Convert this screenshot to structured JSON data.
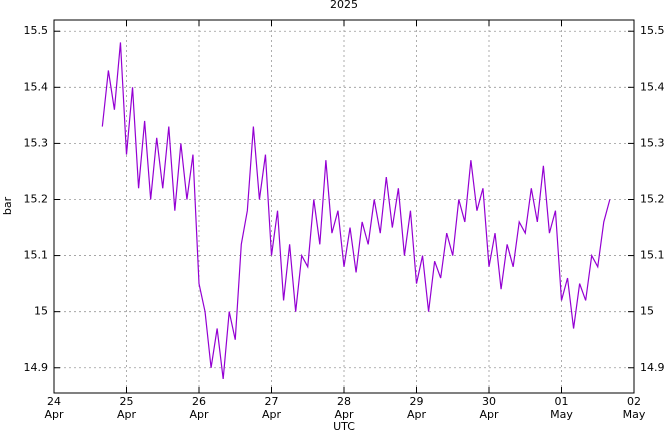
{
  "chart_data": {
    "type": "line",
    "title": "2025",
    "x_label": "UTC",
    "y_label": "bar",
    "color": "#9400d3",
    "grid": true,
    "x": [
      "2025-04-24T16:00",
      "2025-04-24T18:00",
      "2025-04-24T20:00",
      "2025-04-24T22:00",
      "2025-04-25T00:00",
      "2025-04-25T02:00",
      "2025-04-25T04:00",
      "2025-04-25T06:00",
      "2025-04-25T08:00",
      "2025-04-25T10:00",
      "2025-04-25T12:00",
      "2025-04-25T14:00",
      "2025-04-25T16:00",
      "2025-04-25T18:00",
      "2025-04-25T20:00",
      "2025-04-25T22:00",
      "2025-04-26T00:00",
      "2025-04-26T02:00",
      "2025-04-26T04:00",
      "2025-04-26T06:00",
      "2025-04-26T08:00",
      "2025-04-26T10:00",
      "2025-04-26T12:00",
      "2025-04-26T14:00",
      "2025-04-26T16:00",
      "2025-04-26T18:00",
      "2025-04-26T20:00",
      "2025-04-26T22:00",
      "2025-04-27T00:00",
      "2025-04-27T02:00",
      "2025-04-27T04:00",
      "2025-04-27T06:00",
      "2025-04-27T08:00",
      "2025-04-27T10:00",
      "2025-04-27T12:00",
      "2025-04-27T14:00",
      "2025-04-27T16:00",
      "2025-04-27T18:00",
      "2025-04-27T20:00",
      "2025-04-27T22:00",
      "2025-04-28T00:00",
      "2025-04-28T02:00",
      "2025-04-28T04:00",
      "2025-04-28T06:00",
      "2025-04-28T08:00",
      "2025-04-28T10:00",
      "2025-04-28T12:00",
      "2025-04-28T14:00",
      "2025-04-28T16:00",
      "2025-04-28T18:00",
      "2025-04-28T20:00",
      "2025-04-28T22:00",
      "2025-04-29T00:00",
      "2025-04-29T02:00",
      "2025-04-29T04:00",
      "2025-04-29T06:00",
      "2025-04-29T08:00",
      "2025-04-29T10:00",
      "2025-04-29T12:00",
      "2025-04-29T14:00",
      "2025-04-29T16:00",
      "2025-04-29T18:00",
      "2025-04-29T20:00",
      "2025-04-29T22:00",
      "2025-04-30T00:00",
      "2025-04-30T02:00",
      "2025-04-30T04:00",
      "2025-04-30T06:00",
      "2025-04-30T08:00",
      "2025-04-30T10:00",
      "2025-04-30T12:00",
      "2025-04-30T14:00",
      "2025-04-30T16:00",
      "2025-04-30T18:00",
      "2025-04-30T20:00",
      "2025-04-30T22:00",
      "2025-05-01T00:00",
      "2025-05-01T02:00",
      "2025-05-01T04:00",
      "2025-05-01T06:00",
      "2025-05-01T08:00",
      "2025-05-01T10:00",
      "2025-05-01T12:00",
      "2025-05-01T14:00",
      "2025-05-01T16:00"
    ],
    "values": [
      15.33,
      15.43,
      15.36,
      15.48,
      15.28,
      15.4,
      15.22,
      15.34,
      15.2,
      15.31,
      15.22,
      15.33,
      15.18,
      15.3,
      15.2,
      15.28,
      15.05,
      15.0,
      14.9,
      14.97,
      14.88,
      15.0,
      14.95,
      15.12,
      15.18,
      15.33,
      15.2,
      15.28,
      15.1,
      15.18,
      15.02,
      15.12,
      15.0,
      15.1,
      15.08,
      15.2,
      15.12,
      15.27,
      15.14,
      15.18,
      15.08,
      15.15,
      15.07,
      15.16,
      15.12,
      15.2,
      15.14,
      15.24,
      15.15,
      15.22,
      15.1,
      15.18,
      15.05,
      15.1,
      15.0,
      15.09,
      15.06,
      15.14,
      15.1,
      15.2,
      15.16,
      15.27,
      15.18,
      15.22,
      15.08,
      15.14,
      15.04,
      15.12,
      15.08,
      15.16,
      15.14,
      15.22,
      15.16,
      15.26,
      15.14,
      15.18,
      15.02,
      15.06,
      14.97,
      15.05,
      15.02,
      15.1,
      15.08,
      15.16,
      15.2
    ],
    "xlim": [
      "2025-04-24T00:00",
      "2025-05-02T00:00"
    ],
    "xticks": [
      {
        "value": "2025-04-24T00:00",
        "label": "24\nApr"
      },
      {
        "value": "2025-04-25T00:00",
        "label": "25\nApr"
      },
      {
        "value": "2025-04-26T00:00",
        "label": "26\nApr"
      },
      {
        "value": "2025-04-27T00:00",
        "label": "27\nApr"
      },
      {
        "value": "2025-04-28T00:00",
        "label": "28\nApr"
      },
      {
        "value": "2025-04-29T00:00",
        "label": "29\nApr"
      },
      {
        "value": "2025-04-30T00:00",
        "label": "30\nApr"
      },
      {
        "value": "2025-05-01T00:00",
        "label": "01\nMay"
      },
      {
        "value": "2025-05-02T00:00",
        "label": "02\nMay"
      }
    ],
    "ylim": [
      14.855,
      15.52
    ],
    "yticks": [
      14.9,
      15,
      15.1,
      15.2,
      15.3,
      15.4,
      15.5
    ]
  }
}
